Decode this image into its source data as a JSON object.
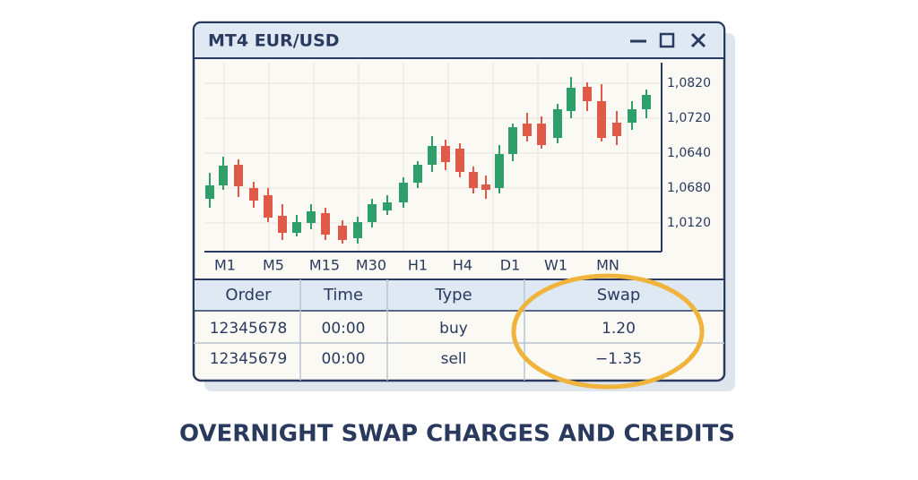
{
  "window": {
    "title": "MT4  EUR/USD"
  },
  "chart": {
    "price_labels": [
      "1,0820",
      "1,0720",
      "1,0640",
      "1,0680",
      "1,0120"
    ],
    "timeframes": [
      "M1",
      "M5",
      "M15",
      "M30",
      "H1",
      "H4",
      "D1",
      "W1",
      "MN"
    ]
  },
  "table": {
    "headers": [
      "Order",
      "Time",
      "Type",
      "Swap"
    ],
    "rows": [
      [
        "12345678",
        "00:00",
        "buy",
        "1.20"
      ],
      [
        "12345679",
        "00:00",
        "sell",
        "−1.35"
      ]
    ]
  },
  "caption": "OVERNIGHT SWAP CHARGES AND CREDITS"
}
